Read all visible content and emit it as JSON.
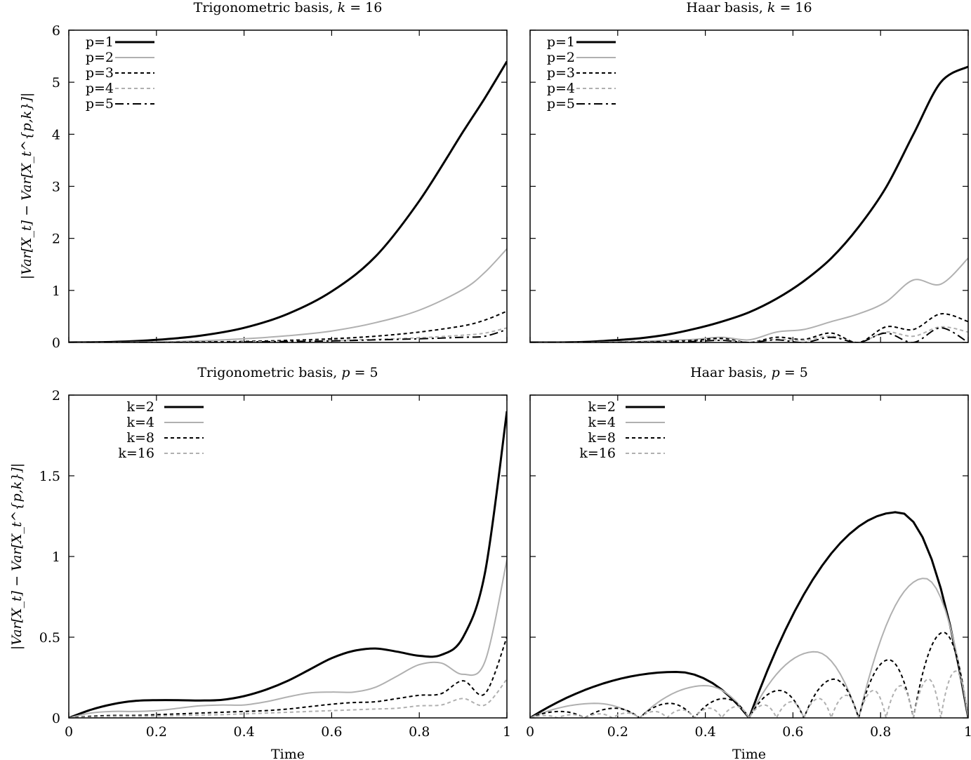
{
  "figure": {
    "shared_xlabel": "Time",
    "ylabel_top": "|Var[X_t] − Var[X_t^{p,k}]|",
    "ylabel_bottom": "|Var[X_t] − Var[X_t^{p,k}]|"
  },
  "chart_data": [
    {
      "type": "line",
      "title": "Trigonometric basis, k = 16",
      "xlabel": "",
      "ylabel": "|Var[X_t] − Var[X_t^{p,k}]|",
      "xlim": [
        0,
        1
      ],
      "ylim": [
        0,
        6
      ],
      "xticks": [
        "",
        "",
        "",
        "",
        "",
        ""
      ],
      "yticks": [
        "0",
        "1",
        "2",
        "3",
        "4",
        "5",
        "6"
      ],
      "x": [
        0,
        0.1,
        0.2,
        0.3,
        0.4,
        0.5,
        0.6,
        0.7,
        0.8,
        0.9,
        0.95,
        1
      ],
      "series": [
        {
          "name": "p=1",
          "color": "#000000",
          "dash": "solid",
          "width": 3,
          "values": [
            0,
            0.01,
            0.05,
            0.13,
            0.28,
            0.55,
            0.98,
            1.65,
            2.72,
            4.05,
            4.7,
            5.4
          ]
        },
        {
          "name": "p=2",
          "color": "#b0b0b0",
          "dash": "solid",
          "width": 2,
          "values": [
            0,
            0,
            0.01,
            0.03,
            0.07,
            0.13,
            0.22,
            0.38,
            0.62,
            1.02,
            1.35,
            1.8
          ]
        },
        {
          "name": "p=3",
          "color": "#000000",
          "dash": "dotted",
          "width": 2,
          "values": [
            0,
            0,
            0,
            0.01,
            0.02,
            0.04,
            0.07,
            0.12,
            0.2,
            0.32,
            0.43,
            0.6
          ]
        },
        {
          "name": "p=4",
          "color": "#b0b0b0",
          "dash": "dotted",
          "width": 2,
          "values": [
            0,
            0,
            0,
            0,
            0.01,
            0.02,
            0.04,
            0.06,
            0.09,
            0.14,
            0.18,
            0.28
          ]
        },
        {
          "name": "p=5",
          "color": "#000000",
          "dash": "dashdot",
          "width": 2,
          "values": [
            0,
            0,
            0,
            0,
            0.01,
            0.02,
            0.03,
            0.05,
            0.07,
            0.1,
            0.12,
            0.25
          ]
        }
      ]
    },
    {
      "type": "line",
      "title": "Haar basis, k = 16",
      "xlabel": "",
      "ylabel": "",
      "xlim": [
        0,
        1
      ],
      "ylim": [
        0,
        6
      ],
      "xticks": [
        "",
        "",
        "",
        "",
        "",
        ""
      ],
      "yticks": [
        "",
        "",
        "",
        "",
        "",
        "",
        ""
      ],
      "x": [
        0,
        0.0625,
        0.125,
        0.1875,
        0.25,
        0.3125,
        0.375,
        0.4375,
        0.5,
        0.5625,
        0.625,
        0.6875,
        0.75,
        0.8125,
        0.875,
        0.9375,
        1
      ],
      "series": [
        {
          "name": "p=1",
          "color": "#000000",
          "dash": "solid",
          "width": 3,
          "values": [
            0,
            0,
            0.01,
            0.04,
            0.08,
            0.15,
            0.26,
            0.4,
            0.58,
            0.84,
            1.18,
            1.62,
            2.22,
            2.98,
            4.0,
            5.0,
            5.3
          ]
        },
        {
          "name": "p=2",
          "color": "#b0b0b0",
          "dash": "solid",
          "width": 2,
          "values": [
            0,
            0,
            0,
            0.01,
            0.02,
            0.04,
            0.06,
            0.1,
            0.05,
            0.2,
            0.25,
            0.4,
            0.55,
            0.78,
            1.2,
            1.12,
            1.62
          ]
        },
        {
          "name": "p=3",
          "color": "#000000",
          "dash": "dotted",
          "width": 2,
          "values": [
            0,
            0,
            0,
            0,
            0.01,
            0.02,
            0.04,
            0.08,
            0,
            0.1,
            0.06,
            0.18,
            0,
            0.3,
            0.25,
            0.55,
            0.4
          ]
        },
        {
          "name": "p=4",
          "color": "#b0b0b0",
          "dash": "dotted",
          "width": 2,
          "values": [
            0,
            0,
            0,
            0,
            0,
            0.01,
            0.02,
            0.05,
            0,
            0.06,
            0.04,
            0.12,
            0,
            0.2,
            0.12,
            0.3,
            0.2
          ]
        },
        {
          "name": "p=5",
          "color": "#000000",
          "dash": "dashdot",
          "width": 2,
          "values": [
            0,
            0,
            0,
            0,
            0,
            0.01,
            0.02,
            0.04,
            0,
            0.05,
            0,
            0.1,
            0,
            0.18,
            0,
            0.28,
            0
          ]
        }
      ]
    },
    {
      "type": "line",
      "title": "Trigonometric basis, p = 5",
      "xlabel": "Time",
      "ylabel": "|Var[X_t] − Var[X_t^{p,k}]|",
      "xlim": [
        0,
        1
      ],
      "ylim": [
        0,
        2
      ],
      "xticks": [
        "0",
        "0.2",
        "0.4",
        "0.6",
        "0.8",
        "1"
      ],
      "yticks": [
        "0",
        "0.5",
        "1",
        "1.5",
        "2"
      ],
      "x": [
        0,
        0.05,
        0.1,
        0.15,
        0.2,
        0.25,
        0.3,
        0.35,
        0.4,
        0.45,
        0.5,
        0.55,
        0.6,
        0.65,
        0.7,
        0.75,
        0.8,
        0.85,
        0.9,
        0.95,
        1
      ],
      "series": [
        {
          "name": "k=2",
          "color": "#000000",
          "dash": "solid",
          "width": 3,
          "values": [
            0,
            0.05,
            0.085,
            0.105,
            0.11,
            0.11,
            0.108,
            0.112,
            0.135,
            0.175,
            0.23,
            0.3,
            0.37,
            0.415,
            0.43,
            0.41,
            0.385,
            0.39,
            0.5,
            0.9,
            1.9
          ]
        },
        {
          "name": "k=4",
          "color": "#b0b0b0",
          "dash": "solid",
          "width": 2,
          "values": [
            0,
            0.03,
            0.04,
            0.04,
            0.045,
            0.06,
            0.075,
            0.08,
            0.08,
            0.1,
            0.13,
            0.155,
            0.16,
            0.16,
            0.19,
            0.26,
            0.33,
            0.34,
            0.27,
            0.35,
            0.98
          ]
        },
        {
          "name": "k=8",
          "color": "#000000",
          "dash": "dotted",
          "width": 2,
          "values": [
            0,
            0.01,
            0.015,
            0.015,
            0.02,
            0.025,
            0.03,
            0.035,
            0.04,
            0.045,
            0.055,
            0.07,
            0.085,
            0.095,
            0.1,
            0.12,
            0.14,
            0.15,
            0.23,
            0.15,
            0.5
          ]
        },
        {
          "name": "k=16",
          "color": "#b0b0b0",
          "dash": "dotted",
          "width": 2,
          "values": [
            0,
            0.005,
            0.01,
            0.01,
            0.012,
            0.015,
            0.018,
            0.02,
            0.025,
            0.03,
            0.035,
            0.04,
            0.045,
            0.05,
            0.055,
            0.06,
            0.075,
            0.08,
            0.12,
            0.08,
            0.24
          ]
        }
      ]
    },
    {
      "type": "line",
      "title": "Haar basis, p = 5",
      "xlabel": "Time",
      "ylabel": "",
      "xlim": [
        0,
        1
      ],
      "ylim": [
        0,
        2
      ],
      "xticks": [
        "0",
        "0.2",
        "0.4",
        "0.6",
        "0.8",
        "1"
      ],
      "yticks": [
        "",
        "",
        "",
        "",
        ""
      ],
      "piecewise_arches": true,
      "series": [
        {
          "name": "k=2",
          "color": "#000000",
          "dash": "solid",
          "width": 3,
          "segments": 2,
          "peaks": [
            0.285,
            1.275
          ],
          "peak_pos": [
            0.67,
            0.68
          ]
        },
        {
          "name": "k=4",
          "color": "#b0b0b0",
          "dash": "solid",
          "width": 2,
          "segments": 4,
          "peaks": [
            0.09,
            0.2,
            0.41,
            0.865
          ],
          "peak_pos": [
            0.6,
            0.6,
            0.6,
            0.6
          ]
        },
        {
          "name": "k=8",
          "color": "#000000",
          "dash": "dotted",
          "width": 2,
          "segments": 8,
          "peaks": [
            0.04,
            0.06,
            0.09,
            0.12,
            0.17,
            0.24,
            0.36,
            0.53
          ],
          "peak_pos": [
            0.55,
            0.55,
            0.55,
            0.55,
            0.55,
            0.55,
            0.55,
            0.55
          ]
        },
        {
          "name": "k=16",
          "color": "#b0b0b0",
          "dash": "dotted",
          "width": 2,
          "segments": 16,
          "peaks": [
            0.015,
            0.02,
            0.025,
            0.03,
            0.04,
            0.05,
            0.06,
            0.07,
            0.08,
            0.1,
            0.12,
            0.14,
            0.17,
            0.2,
            0.24,
            0.29
          ],
          "peak_pos": [
            0.55,
            0.55,
            0.55,
            0.55,
            0.55,
            0.55,
            0.55,
            0.55,
            0.55,
            0.55,
            0.55,
            0.55,
            0.55,
            0.55,
            0.55,
            0.55
          ]
        }
      ]
    }
  ]
}
